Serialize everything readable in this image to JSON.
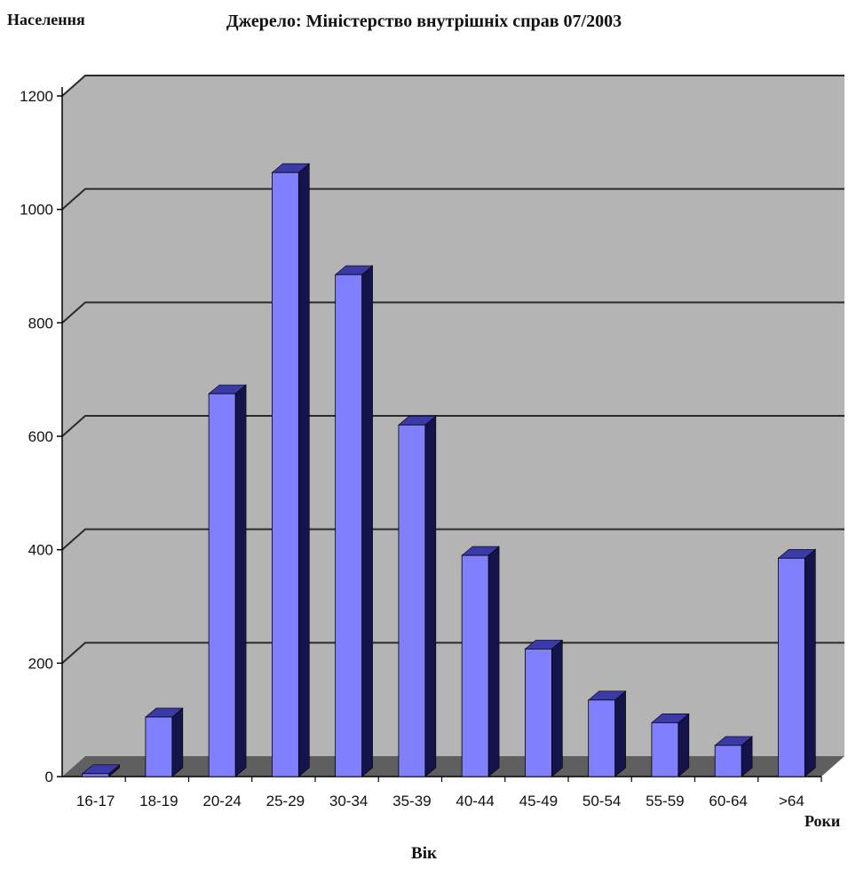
{
  "header": {
    "title_line1": "",
    "title_line2": "Джерело: Міністерство внутрішніх справ 07/2003",
    "y_unit": "Населення",
    "x_unit": "Роки",
    "x_title": "Вік"
  },
  "colors": {
    "bar_front": "#8080ff",
    "bar_top": "#3a3aa8",
    "bar_side": "#14144a",
    "wall": "#b4b4b4",
    "floor": "#5f5f5f",
    "gridline": "#2a2a2a"
  },
  "chart_data": {
    "type": "bar",
    "style": "3d-columns",
    "grid": true,
    "ylim": [
      0,
      1200
    ],
    "yticks": [
      0,
      200,
      400,
      600,
      800,
      1000,
      1200
    ],
    "categories": [
      "16-17",
      "18-19",
      "20-24",
      "25-29",
      "30-34",
      "35-39",
      "40-44",
      "45-49",
      "50-54",
      "55-59",
      "60-64",
      ">64"
    ],
    "values": [
      5,
      105,
      675,
      1065,
      885,
      620,
      390,
      225,
      135,
      95,
      55,
      385
    ]
  }
}
